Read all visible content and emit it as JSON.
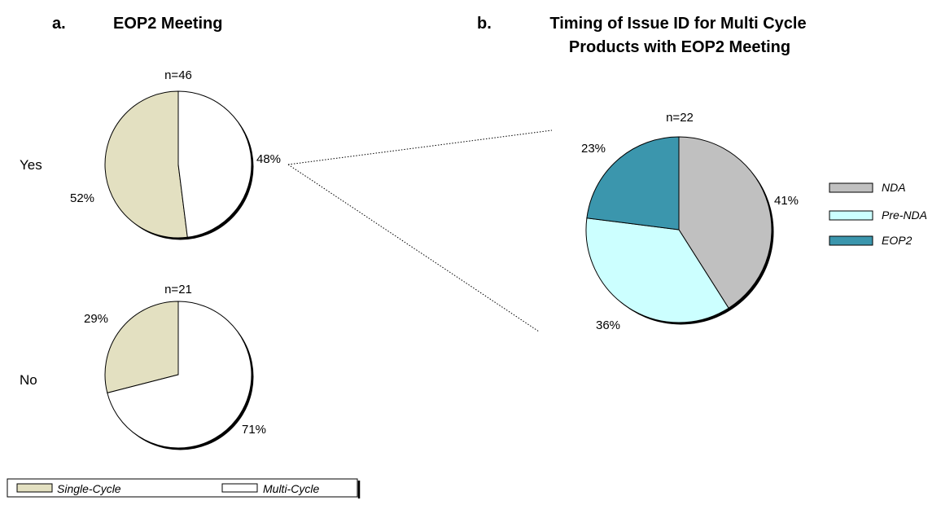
{
  "chart_data": [
    {
      "type": "pie",
      "panel_letter": "a.",
      "title": "EOP2 Meeting",
      "legend": [
        "Single-Cycle",
        "Multi-Cycle"
      ],
      "legend_placement": "bottom-left",
      "colors": {
        "Single-Cycle": "#e3e0c1",
        "Multi-Cycle": "#ffffff"
      },
      "pies": [
        {
          "row_label": "Yes",
          "n_label": "n=46",
          "slices": [
            {
              "name": "Single-Cycle",
              "value": 52,
              "label": "52%"
            },
            {
              "name": "Multi-Cycle",
              "value": 48,
              "label": "48%"
            }
          ]
        },
        {
          "row_label": "No",
          "n_label": "n=21",
          "slices": [
            {
              "name": "Single-Cycle",
              "value": 29,
              "label": "29%"
            },
            {
              "name": "Multi-Cycle",
              "value": 71,
              "label": "71%"
            }
          ]
        }
      ]
    },
    {
      "type": "pie",
      "panel_letter": "b.",
      "title_lines": [
        "Timing of Issue ID for Multi Cycle",
        "Products with EOP2 Meeting"
      ],
      "n_label": "n=22",
      "legend_placement": "right",
      "slices": [
        {
          "name": "NDA",
          "value": 41,
          "label": "41%",
          "color": "#c0c0c0"
        },
        {
          "name": "Pre-NDA",
          "value": 36,
          "label": "36%",
          "color": "#ccffff"
        },
        {
          "name": "EOP2",
          "value": 23,
          "label": "23%",
          "color": "#3b96ad"
        }
      ]
    }
  ]
}
